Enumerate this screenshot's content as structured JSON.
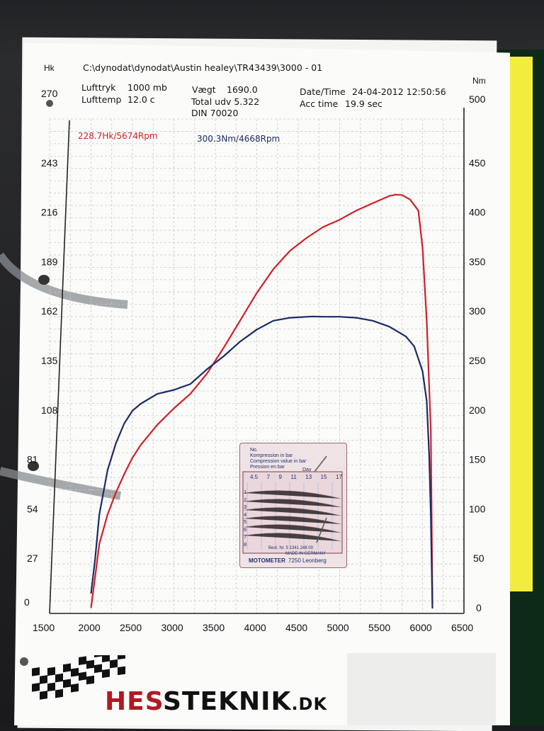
{
  "header": {
    "hk_label": "Hk",
    "nm_label": "Nm",
    "path": "C:\\dynodat\\dynodat\\Austin healey\\TR43439\\3000 - 01",
    "lufttryk_label": "Lufttryk",
    "lufttryk_value": "1000 mb",
    "lufttemp_label": "Lufttemp",
    "lufttemp_value": "12.0 c",
    "vaegt_label": "Vægt",
    "vaegt_value": "1690.0",
    "total_udv": "Total udv 5.322",
    "din": "DIN 70020",
    "datetime_label": "Date/Time",
    "datetime_value": "24-04-2012 12:50:56",
    "acc_label": "Acc time",
    "acc_value": "19.9 sec"
  },
  "peaks": {
    "power": "228.7Hk/5674Rpm",
    "torque": "300.3Nm/4668Rpm"
  },
  "colors": {
    "power": "#d11f25",
    "torque": "#1c2a66",
    "grid": "#c9c9c9"
  },
  "chart_data": {
    "type": "line",
    "xlabel": "",
    "ylabel_left": "Hk",
    "ylabel_right": "Nm",
    "x_ticks": [
      1500,
      2000,
      2500,
      3000,
      3500,
      4000,
      4500,
      5000,
      5500,
      6000,
      6500
    ],
    "y_left_ticks": [
      0,
      27,
      54,
      81,
      108,
      135,
      162,
      189,
      216,
      243,
      270
    ],
    "y_right_ticks": [
      0,
      50,
      100,
      150,
      200,
      250,
      300,
      350,
      400,
      450,
      500
    ],
    "xlim": [
      1500,
      6500
    ],
    "ylim_left": [
      0,
      270
    ],
    "ylim_right": [
      0,
      500
    ],
    "grid": true,
    "series": [
      {
        "name": "228.7Hk/5674Rpm",
        "axis": "left",
        "color": "#d11f25",
        "x": [
          2000,
          2050,
          2100,
          2200,
          2300,
          2400,
          2500,
          2600,
          2800,
          3000,
          3200,
          3400,
          3600,
          3800,
          4000,
          4200,
          4400,
          4600,
          4800,
          5000,
          5200,
          5400,
          5600,
          5674,
          5750,
          5850,
          5950,
          6000,
          6050,
          6100,
          6120
        ],
        "y": [
          3,
          20,
          38,
          54,
          66,
          76,
          85,
          92,
          103,
          112,
          120,
          131,
          145,
          160,
          175,
          188,
          198,
          205,
          211,
          215,
          220,
          224,
          228,
          228.7,
          228.5,
          226,
          220,
          200,
          160,
          100,
          5
        ]
      },
      {
        "name": "300.3Nm/4668Rpm",
        "axis": "right",
        "color": "#1c2a66",
        "x": [
          2000,
          2050,
          2100,
          2200,
          2300,
          2400,
          2500,
          2600,
          2800,
          3000,
          3200,
          3400,
          3600,
          3800,
          4000,
          4200,
          4400,
          4668,
          4800,
          5000,
          5200,
          5400,
          5600,
          5800,
          5900,
          6000,
          6050,
          6080,
          6100,
          6110,
          6120
        ],
        "y": [
          20,
          55,
          100,
          145,
          172,
          192,
          205,
          212,
          222,
          226,
          232,
          247,
          260,
          275,
          287,
          296,
          299,
          300.3,
          300,
          300,
          299,
          296,
          290,
          280,
          270,
          245,
          215,
          160,
          100,
          50,
          5
        ]
      }
    ]
  },
  "gauge_card": {
    "lines": [
      "No.",
      "Kompression in bar",
      "Compression value in bar",
      "Pression en bar"
    ],
    "day": "Day",
    "scale": [
      "4.5",
      "7",
      "9",
      "11",
      "13",
      "15",
      "17"
    ],
    "rows": [
      "1",
      "2",
      "3",
      "4",
      "5",
      "6",
      "7",
      "8"
    ],
    "order": "Best. Nr. 5 1341 248 00",
    "made": "MADE IN GERMANY",
    "brand": "MOTOMETER",
    "city": "7250 Leonberg"
  },
  "logo": {
    "red_part": "HES",
    "black_part": "STEKNIK",
    "domain": ".DK"
  }
}
